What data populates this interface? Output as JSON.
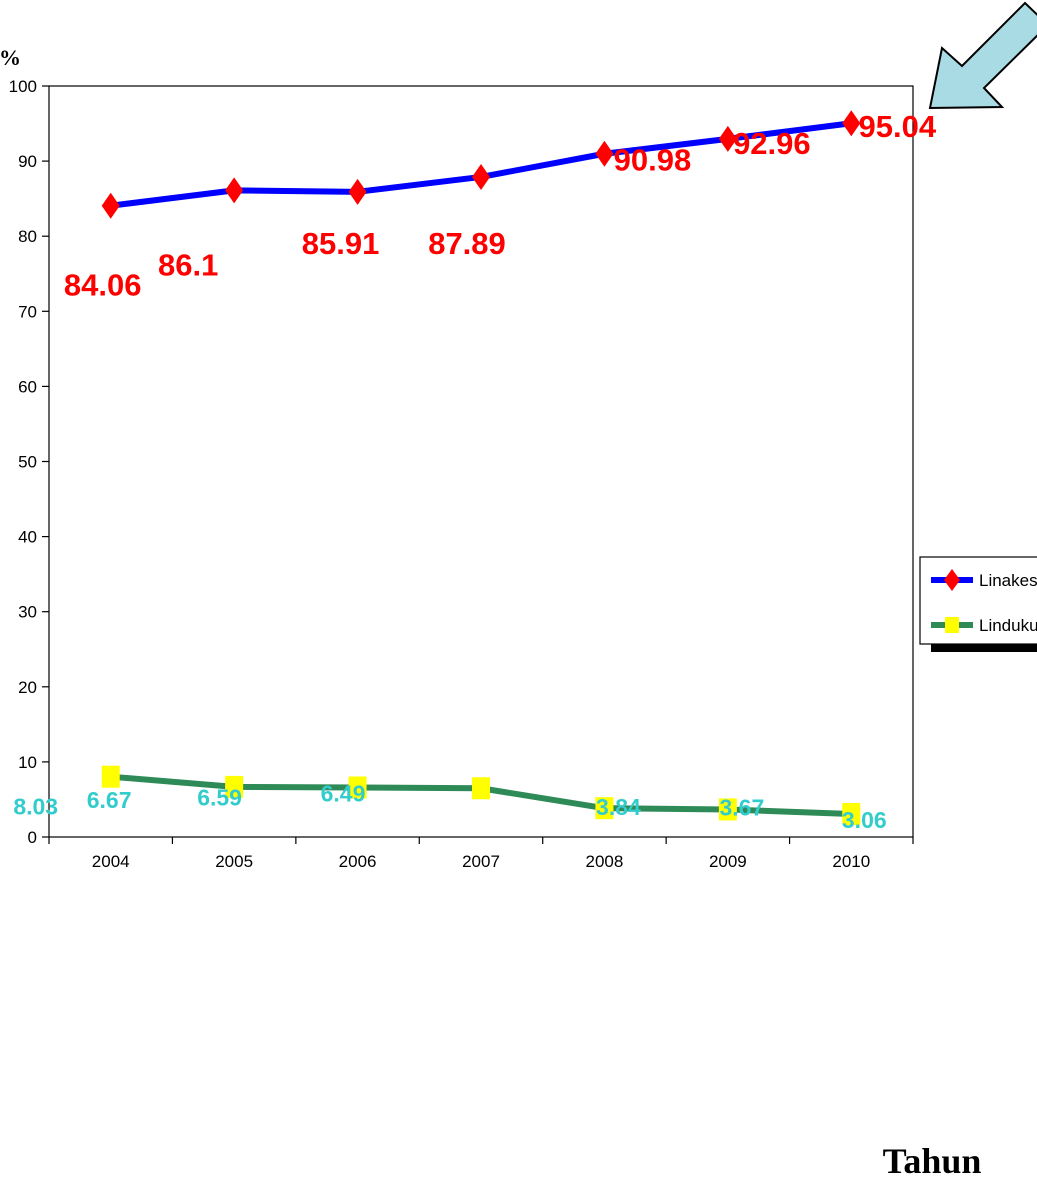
{
  "chart_data": {
    "type": "line",
    "categories": [
      "2004",
      "2005",
      "2006",
      "2007",
      "2008",
      "2009",
      "2010"
    ],
    "ylim": [
      0,
      100
    ],
    "yticks": [
      "0",
      "10",
      "20",
      "30",
      "40",
      "50",
      "60",
      "70",
      "80",
      "90",
      "100"
    ],
    "xlabel": "Tahun",
    "ylabel": "%",
    "grid": false,
    "legend_position": "right",
    "series": [
      {
        "name": "Linakes",
        "values": [
          84.06,
          86.1,
          85.91,
          87.89,
          90.98,
          92.96,
          95.04
        ],
        "labels": [
          "84.06",
          "86.1",
          "85.91",
          "87.89",
          "90.98",
          "92.96",
          "95.04"
        ],
        "line_color": "#0000ff",
        "marker": "diamond",
        "marker_color": "#ff0000",
        "label_color": "#ff0000"
      },
      {
        "name": "Lindukun",
        "values": [
          8.03,
          6.67,
          6.59,
          6.49,
          3.84,
          3.67,
          3.06
        ],
        "labels": [
          "8.03",
          "6.67",
          "6.59",
          "6.49",
          "3.84",
          "3.67",
          "3.06"
        ],
        "line_color": "#2e8b57",
        "marker": "square",
        "marker_color": "#ffff00",
        "label_color": "#33cccc"
      }
    ],
    "annotation": {
      "shape": "arrow",
      "pointing_to": "95.04",
      "color": "#a9dbe4"
    }
  }
}
